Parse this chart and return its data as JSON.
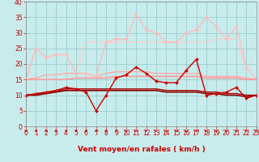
{
  "xlabel": "Vent moyen/en rafales ( km/h )",
  "xlim": [
    0,
    23
  ],
  "ylim": [
    0,
    40
  ],
  "yticks": [
    0,
    5,
    10,
    15,
    20,
    25,
    30,
    35,
    40
  ],
  "xticks": [
    0,
    1,
    2,
    3,
    4,
    5,
    6,
    7,
    8,
    9,
    10,
    11,
    12,
    13,
    14,
    15,
    16,
    17,
    18,
    19,
    20,
    21,
    22,
    23
  ],
  "bg_color": "#c8ecec",
  "grid_color": "#a0d0d0",
  "lines": [
    {
      "y": [
        10,
        10.5,
        11,
        11.5,
        12.5,
        12,
        11,
        5,
        10,
        15.5,
        16.5,
        19,
        17,
        14.5,
        14,
        14,
        18,
        21.5,
        10,
        10.5,
        11,
        12.5,
        9,
        10
      ],
      "color": "#cc0000",
      "lw": 1.0,
      "marker": "D",
      "ms": 2.0,
      "zorder": 5
    },
    {
      "y": [
        10,
        10,
        10.5,
        11,
        11.5,
        11.5,
        11.5,
        11.5,
        11.5,
        11.5,
        11.5,
        11.5,
        11.5,
        11.5,
        11,
        11,
        11,
        11,
        10.5,
        10.5,
        10,
        10,
        9.5,
        10
      ],
      "color": "#880000",
      "lw": 1.2,
      "marker": null,
      "ms": 0,
      "zorder": 4
    },
    {
      "y": [
        10,
        10.2,
        10.8,
        11.2,
        12,
        12,
        12,
        12,
        12,
        12,
        12,
        12,
        12,
        12,
        11.5,
        11.5,
        11.5,
        11.5,
        11,
        11,
        10.5,
        10.5,
        10,
        10
      ],
      "color": "#aa0000",
      "lw": 1.0,
      "marker": null,
      "ms": 0,
      "zorder": 3
    },
    {
      "y": [
        15,
        15,
        15,
        15,
        15,
        15.5,
        15.5,
        15.5,
        15.5,
        16,
        16,
        16,
        16,
        16,
        16,
        16,
        16,
        16,
        15.5,
        15.5,
        15.5,
        15.5,
        15,
        15
      ],
      "color": "#ff9999",
      "lw": 1.2,
      "marker": null,
      "ms": 0,
      "zorder": 3
    },
    {
      "y": [
        15,
        15.5,
        16.5,
        16.5,
        17,
        17,
        17,
        16,
        17,
        17.5,
        17.5,
        17.5,
        17.5,
        17,
        17,
        17,
        17,
        17,
        16,
        16,
        16,
        16,
        15.5,
        15
      ],
      "color": "#ffaaaa",
      "lw": 1.0,
      "marker": null,
      "ms": 0,
      "zorder": 2
    },
    {
      "y": [
        15,
        25,
        22,
        23,
        23,
        17,
        17,
        16,
        27,
        28,
        28,
        36,
        31,
        30,
        27,
        27,
        30,
        31,
        35,
        32,
        28,
        32,
        19,
        15
      ],
      "color": "#ffbbbb",
      "lw": 1.0,
      "marker": "D",
      "ms": 2.0,
      "zorder": 2
    },
    {
      "y": [
        15,
        25,
        22,
        23,
        23,
        17,
        27,
        27,
        27,
        27,
        27,
        27,
        27,
        27,
        27,
        27,
        27,
        27,
        27,
        28,
        28,
        28,
        19,
        15
      ],
      "color": "#ffcccc",
      "lw": 1.0,
      "marker": null,
      "ms": 0,
      "zorder": 1
    }
  ],
  "arrow_color": "#cc0000",
  "arrow_angles": [
    0,
    0,
    0,
    0,
    0,
    10,
    0,
    10,
    10,
    15,
    20,
    25,
    25,
    25,
    10,
    10,
    10,
    10,
    15,
    10,
    15,
    15,
    25,
    30
  ],
  "xlabel_color": "#cc0000",
  "xlabel_fontsize": 6.5,
  "tick_color": "#cc0000",
  "tick_fontsize": 5.5
}
